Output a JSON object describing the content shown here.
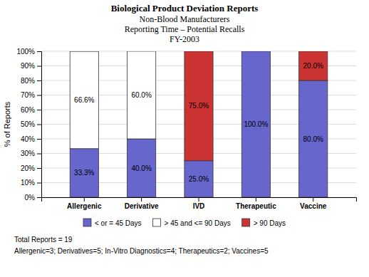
{
  "chart_data": {
    "type": "bar",
    "stacked": true,
    "title": "Biological Product Deviation Reports",
    "subtitle": [
      "Non-Blood Manufacturers",
      "Reporting Time – Potential Recalls",
      "FY-2003"
    ],
    "categories": [
      "Allergenic",
      "Derivative",
      "IVD",
      "Therapeutic",
      "Vaccine"
    ],
    "series": [
      {
        "name": "< or = 45 Days",
        "color": "#6666CC",
        "values": [
          33.3,
          40.0,
          25.0,
          100.0,
          80.0
        ],
        "value_labels": [
          "33.3%",
          "40.0%",
          "25.0%",
          "100.0%",
          "80.0%"
        ]
      },
      {
        "name": "> 45 and <= 90 Days",
        "color": "#FFFFFF",
        "values": [
          66.6,
          60.0,
          0.0,
          0.0,
          0.0
        ],
        "value_labels": [
          "66.6%",
          "60.0%",
          null,
          null,
          null
        ]
      },
      {
        "name": "> 90 Days",
        "color": "#CC3333",
        "values": [
          0.0,
          0.0,
          75.0,
          0.0,
          20.0
        ],
        "value_labels": [
          null,
          null,
          "75.0%",
          null,
          "20.0%"
        ]
      }
    ],
    "data_labels": true,
    "ylabel": "% of Reports",
    "ylim": [
      0,
      100
    ],
    "yticks": [
      {
        "value": 0,
        "label": "0%"
      },
      {
        "value": 10,
        "label": "10%"
      },
      {
        "value": 20,
        "label": "20%"
      },
      {
        "value": 30,
        "label": "30%"
      },
      {
        "value": 40,
        "label": "40%"
      },
      {
        "value": 50,
        "label": "50%"
      },
      {
        "value": 60,
        "label": "60%"
      },
      {
        "value": 70,
        "label": "70%"
      },
      {
        "value": 80,
        "label": "80%"
      },
      {
        "value": 90,
        "label": "90%"
      },
      {
        "value": 100,
        "label": "100%"
      }
    ],
    "grid": true,
    "legend": "bottom",
    "annotations": [
      "Total Reports = 19",
      "Allergenic=3; Derivatives=5; In-Vitro Diagnostics=4; Therapeutics=2; Vaccines=5"
    ]
  }
}
